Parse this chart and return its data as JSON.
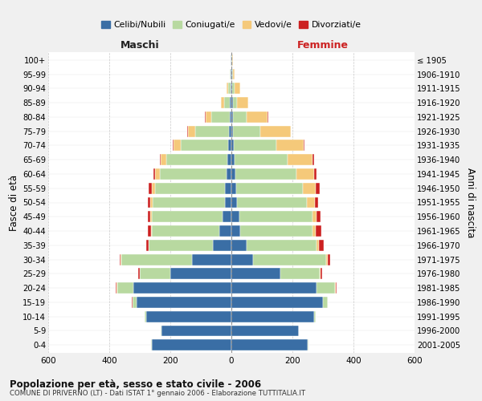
{
  "age_groups": [
    "0-4",
    "5-9",
    "10-14",
    "15-19",
    "20-24",
    "25-29",
    "30-34",
    "35-39",
    "40-44",
    "45-49",
    "50-54",
    "55-59",
    "60-64",
    "65-69",
    "70-74",
    "75-79",
    "80-84",
    "85-89",
    "90-94",
    "95-99",
    "100+"
  ],
  "birth_years": [
    "2001-2005",
    "1996-2000",
    "1991-1995",
    "1986-1990",
    "1981-1985",
    "1976-1980",
    "1971-1975",
    "1966-1970",
    "1961-1965",
    "1956-1960",
    "1951-1955",
    "1946-1950",
    "1941-1945",
    "1936-1940",
    "1931-1935",
    "1926-1930",
    "1921-1925",
    "1916-1920",
    "1911-1915",
    "1906-1910",
    "≤ 1905"
  ],
  "maschi_celibi": [
    260,
    230,
    280,
    310,
    320,
    200,
    130,
    60,
    40,
    30,
    22,
    20,
    15,
    12,
    10,
    8,
    5,
    4,
    3,
    2,
    2
  ],
  "maschi_coniugati": [
    2,
    2,
    5,
    15,
    55,
    100,
    230,
    210,
    220,
    230,
    235,
    230,
    220,
    200,
    155,
    110,
    60,
    20,
    8,
    3,
    1
  ],
  "maschi_vedovi": [
    0,
    0,
    0,
    0,
    1,
    1,
    2,
    2,
    3,
    5,
    8,
    10,
    15,
    20,
    25,
    25,
    20,
    10,
    5,
    1,
    0
  ],
  "maschi_divorziati": [
    0,
    0,
    0,
    1,
    2,
    3,
    5,
    8,
    12,
    10,
    10,
    10,
    5,
    3,
    2,
    1,
    1,
    0,
    0,
    0,
    0
  ],
  "femmine_celibi": [
    250,
    220,
    270,
    300,
    280,
    160,
    70,
    50,
    30,
    25,
    18,
    15,
    12,
    10,
    8,
    5,
    4,
    4,
    3,
    2,
    1
  ],
  "femmine_coniugati": [
    2,
    2,
    5,
    15,
    60,
    130,
    240,
    230,
    235,
    240,
    230,
    220,
    200,
    175,
    140,
    90,
    45,
    15,
    8,
    3,
    1
  ],
  "femmine_vedovi": [
    0,
    0,
    0,
    1,
    2,
    3,
    5,
    8,
    10,
    15,
    25,
    40,
    60,
    80,
    90,
    100,
    70,
    35,
    18,
    5,
    2
  ],
  "femmine_divorziati": [
    0,
    0,
    0,
    1,
    2,
    4,
    8,
    15,
    20,
    12,
    12,
    15,
    8,
    5,
    2,
    1,
    1,
    1,
    0,
    0,
    0
  ],
  "color_celibi": "#3a6ea5",
  "color_coniugati": "#b8d9a0",
  "color_vedovi": "#f5c97a",
  "color_divorziati": "#cc2020",
  "xlabel_left": "Maschi",
  "xlabel_right": "Femmine",
  "ylabel_left": "Fasce di età",
  "ylabel_right": "Anni di nascita",
  "title": "Popolazione per età, sesso e stato civile - 2006",
  "subtitle": "COMUNE DI PRIVERNO (LT) - Dati ISTAT 1° gennaio 2006 - Elaborazione TUTTITALIA.IT",
  "legend_labels": [
    "Celibi/Nubili",
    "Coniugati/e",
    "Vedovi/e",
    "Divorziati/e"
  ],
  "xlim": 600,
  "bg_color": "#f0f0f0",
  "plot_bg": "#ffffff"
}
